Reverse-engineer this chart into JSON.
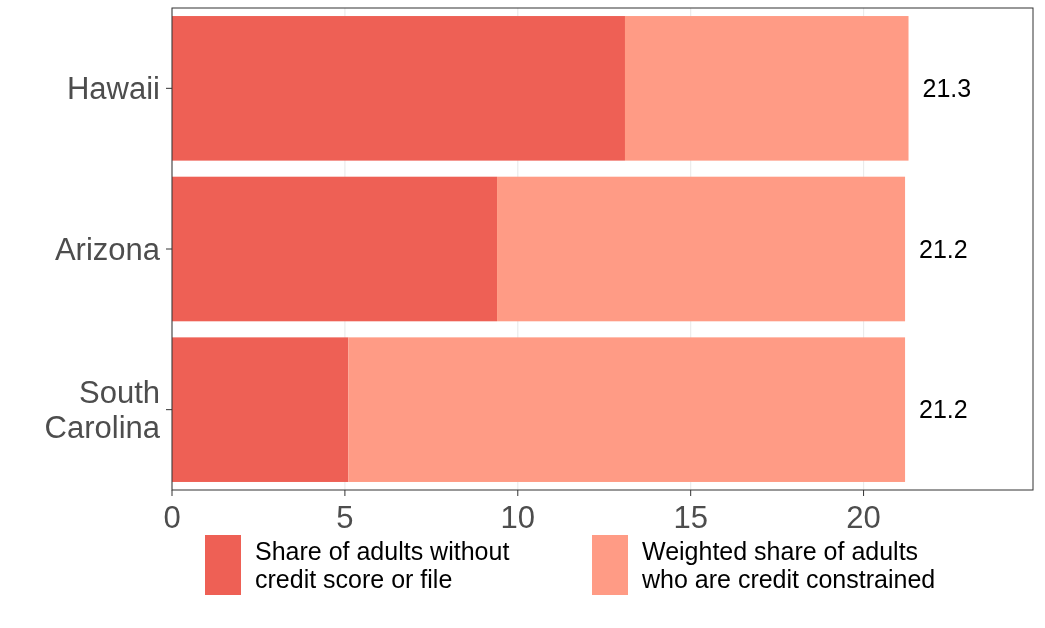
{
  "chart_data": {
    "type": "bar",
    "orientation": "horizontal",
    "stacked": true,
    "categories": [
      "Hawaii",
      "Arizona",
      "South Carolina"
    ],
    "series": [
      {
        "name": "Share of adults without credit score or file",
        "color": "#ee6055",
        "values": [
          13.1,
          9.4,
          5.1
        ]
      },
      {
        "name": "Weighted share of adults who are credit constrained",
        "color": "#ff9b85",
        "values": [
          8.2,
          11.8,
          16.1
        ]
      }
    ],
    "totals": [
      "21.3",
      "21.2",
      "21.2"
    ],
    "xlim": [
      0,
      24.9
    ],
    "xticks": [
      0,
      5,
      10,
      15,
      20
    ],
    "grid": "x",
    "legend": "bottom"
  }
}
